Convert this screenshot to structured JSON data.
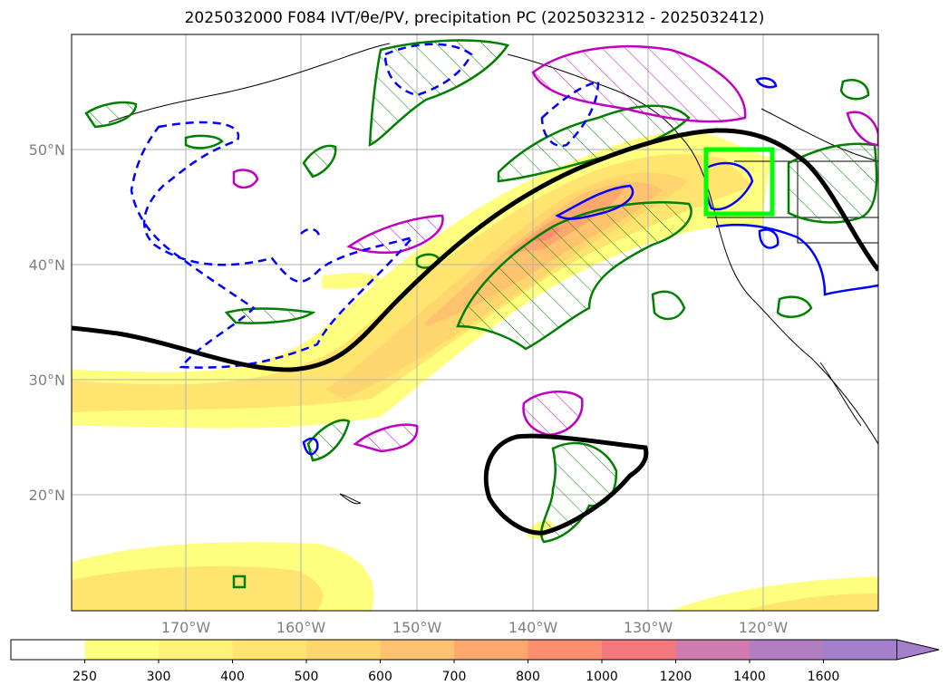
{
  "title": "2025032000 F084 IVT/θe/PV, precipitation PC (2025032312 - 2025032412)",
  "lat_labels": [
    "50°N",
    "40°N",
    "30°N",
    "20°N"
  ],
  "lon_labels": [
    "170°W",
    "160°W",
    "150°W",
    "140°W",
    "130°W",
    "120°W"
  ],
  "colorbar": {
    "ticks": [
      "250",
      "300",
      "400",
      "500",
      "600",
      "700",
      "800",
      "1000",
      "1200",
      "1400",
      "1600"
    ],
    "colors": [
      "#ffffff",
      "#ffff7f",
      "#fff278",
      "#ffe470",
      "#ffd56e",
      "#ffc26e",
      "#ffa86e",
      "#ff8e70",
      "#f2787e",
      "#cf7bb0",
      "#b27ec2",
      "#a47fcc"
    ]
  },
  "colors": {
    "ivt_axis": "#000000",
    "theta_e": "#008000",
    "pv_positive": "#0000ff",
    "pv_hatch": "#c000c0",
    "domain_box": "#00ff00"
  }
}
